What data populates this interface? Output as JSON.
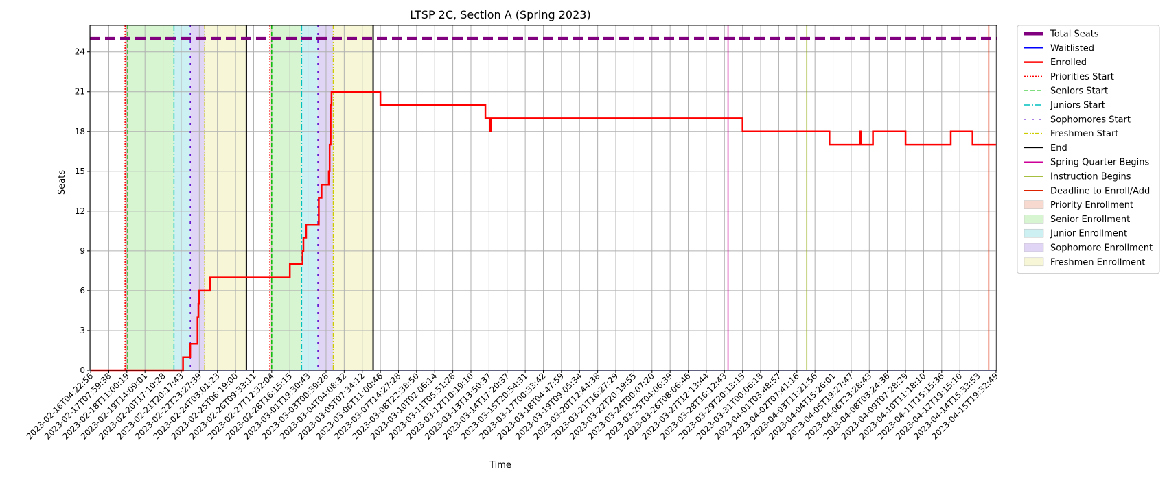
{
  "chart_data": {
    "type": "line",
    "title": "LTSP 2C, Section A (Spring 2023)",
    "xlabel": "Time",
    "ylabel": "Seats",
    "ylim": [
      0,
      26
    ],
    "yticks": [
      0,
      3,
      6,
      9,
      12,
      15,
      18,
      21,
      24
    ],
    "grid": true,
    "legend_position": "outside-right",
    "x_tick_labels": [
      "2023-02-16T04:22:56",
      "2023-02-17T07:59:38",
      "2023-02-18T11:00:19",
      "2023-02-19T14:09:01",
      "2023-02-20T17:10:28",
      "2023-02-21T20:17:43",
      "2023-02-22T23:27:39",
      "2023-02-24T03:01:23",
      "2023-02-25T06:19:00",
      "2023-02-26T09:33:11",
      "2023-02-27T12:32:04",
      "2023-02-28T16:15:15",
      "2023-03-01T19:30:43",
      "2023-03-03T00:39:28",
      "2023-03-04T04:08:32",
      "2023-03-05T07:34:12",
      "2023-03-06T11:00:46",
      "2023-03-07T14:27:28",
      "2023-03-08T22:38:50",
      "2023-03-10T02:06:14",
      "2023-03-11T05:51:28",
      "2023-03-12T10:19:10",
      "2023-03-13T13:50:37",
      "2023-03-14T17:20:37",
      "2023-03-15T20:54:31",
      "2023-03-17T00:33:42",
      "2023-03-18T04:47:59",
      "2023-03-19T09:05:34",
      "2023-03-20T12:44:38",
      "2023-03-21T16:27:29",
      "2023-03-22T20:19:55",
      "2023-03-24T00:07:20",
      "2023-03-25T04:06:39",
      "2023-03-26T08:06:46",
      "2023-03-27T12:13:44",
      "2023-03-28T16:12:43",
      "2023-03-29T20:13:15",
      "2023-03-31T00:06:18",
      "2023-04-01T03:48:57",
      "2023-04-02T07:41:16",
      "2023-04-03T11:21:56",
      "2023-04-04T15:26:01",
      "2023-04-05T19:27:47",
      "2023-04-06T23:28:43",
      "2023-04-08T03:24:36",
      "2023-04-09T07:28:29",
      "2023-04-10T11:18:10",
      "2023-04-11T15:15:36",
      "2023-04-12T19:15:10",
      "2023-04-14T15:33:53",
      "2023-04-15T19:32:49"
    ],
    "legend": [
      {
        "label": "Total Seats",
        "kind": "line",
        "color": "#800080",
        "dash": "dashed-thick"
      },
      {
        "label": "Waitlisted",
        "kind": "line",
        "color": "#0000ff",
        "dash": "solid"
      },
      {
        "label": "Enrolled",
        "kind": "line",
        "color": "#ff0000",
        "dash": "solid-thick"
      },
      {
        "label": "Priorities Start",
        "kind": "line",
        "color": "#ff0000",
        "dash": "dotted"
      },
      {
        "label": "Seniors Start",
        "kind": "line",
        "color": "#00bb00",
        "dash": "dashed"
      },
      {
        "label": "Juniors Start",
        "kind": "line",
        "color": "#00bfbf",
        "dash": "dashdot"
      },
      {
        "label": "Sophomores Start",
        "kind": "line",
        "color": "#5500cc",
        "dash": "loosedash"
      },
      {
        "label": "Freshmen Start",
        "kind": "line",
        "color": "#cccc00",
        "dash": "dashdotdot"
      },
      {
        "label": "End",
        "kind": "line",
        "color": "#000000",
        "dash": "solid"
      },
      {
        "label": "Spring Quarter Begins",
        "kind": "line",
        "color": "#cc0099",
        "dash": "solid"
      },
      {
        "label": "Instruction Begins",
        "kind": "line",
        "color": "#88aa00",
        "dash": "solid"
      },
      {
        "label": "Deadline to Enroll/Add",
        "kind": "line",
        "color": "#dd2200",
        "dash": "solid"
      },
      {
        "label": "Priority Enrollment",
        "kind": "patch",
        "color": "#f7d9cf"
      },
      {
        "label": "Senior Enrollment",
        "kind": "patch",
        "color": "#d8f5d2"
      },
      {
        "label": "Junior Enrollment",
        "kind": "patch",
        "color": "#cdf0f2"
      },
      {
        "label": "Sophomore Enrollment",
        "kind": "patch",
        "color": "#e0d5f5"
      },
      {
        "label": "Freshmen Enrollment",
        "kind": "patch",
        "color": "#f7f7d7"
      }
    ],
    "total_seats": 25,
    "waitlisted_value": 0,
    "enrolled_series": [
      [
        0,
        0
      ],
      [
        5.1,
        0
      ],
      [
        5.1,
        1
      ],
      [
        5.5,
        1
      ],
      [
        5.5,
        2
      ],
      [
        5.9,
        2
      ],
      [
        5.9,
        4
      ],
      [
        5.95,
        4
      ],
      [
        5.95,
        5
      ],
      [
        6.0,
        5
      ],
      [
        6.0,
        6
      ],
      [
        6.6,
        6
      ],
      [
        6.6,
        7
      ],
      [
        11.0,
        7
      ],
      [
        11.0,
        8
      ],
      [
        11.7,
        8
      ],
      [
        11.7,
        9
      ],
      [
        11.75,
        9
      ],
      [
        11.75,
        10
      ],
      [
        11.9,
        10
      ],
      [
        11.9,
        11
      ],
      [
        12.6,
        11
      ],
      [
        12.6,
        13
      ],
      [
        12.75,
        13
      ],
      [
        12.75,
        14
      ],
      [
        13.15,
        14
      ],
      [
        13.15,
        15
      ],
      [
        13.2,
        15
      ],
      [
        13.2,
        17
      ],
      [
        13.25,
        17
      ],
      [
        13.25,
        20
      ],
      [
        13.3,
        20
      ],
      [
        13.3,
        21
      ],
      [
        16.0,
        21
      ],
      [
        16.0,
        20
      ],
      [
        21.8,
        20
      ],
      [
        21.8,
        19
      ],
      [
        22.05,
        19
      ],
      [
        22.05,
        18
      ],
      [
        22.12,
        18
      ],
      [
        22.12,
        19
      ],
      [
        36.0,
        19
      ],
      [
        36.0,
        18
      ],
      [
        40.8,
        18
      ],
      [
        40.8,
        17
      ],
      [
        42.5,
        17
      ],
      [
        42.5,
        18
      ],
      [
        42.55,
        18
      ],
      [
        42.55,
        17
      ],
      [
        43.2,
        17
      ],
      [
        43.2,
        18
      ],
      [
        45.0,
        18
      ],
      [
        45.0,
        17
      ],
      [
        47.5,
        17
      ],
      [
        47.5,
        18
      ],
      [
        48.7,
        18
      ],
      [
        48.7,
        17
      ],
      [
        50.0,
        17
      ]
    ],
    "bands": [
      {
        "kind": "Priority Enrollment",
        "from": 1.9,
        "to": 2.05
      },
      {
        "kind": "Senior Enrollment",
        "from": 2.05,
        "to": 4.6
      },
      {
        "kind": "Junior Enrollment",
        "from": 4.6,
        "to": 5.5
      },
      {
        "kind": "Sophomore Enrollment",
        "from": 5.5,
        "to": 6.3
      },
      {
        "kind": "Freshmen Enrollment",
        "from": 6.3,
        "to": 8.6
      },
      {
        "kind": "Priority Enrollment",
        "from": 9.9,
        "to": 10.0
      },
      {
        "kind": "Senior Enrollment",
        "from": 10.0,
        "to": 11.65
      },
      {
        "kind": "Junior Enrollment",
        "from": 11.65,
        "to": 12.55
      },
      {
        "kind": "Sophomore Enrollment",
        "from": 12.55,
        "to": 13.4
      },
      {
        "kind": "Freshmen Enrollment",
        "from": 13.4,
        "to": 15.6
      }
    ],
    "event_lines": [
      {
        "kind": "Priorities Start",
        "x": 1.9
      },
      {
        "kind": "Seniors Start",
        "x": 2.05
      },
      {
        "kind": "Juniors Start",
        "x": 4.6
      },
      {
        "kind": "Sophomores Start",
        "x": 5.5
      },
      {
        "kind": "Freshmen Start",
        "x": 6.3
      },
      {
        "kind": "End",
        "x": 8.6
      },
      {
        "kind": "Priorities Start",
        "x": 9.9
      },
      {
        "kind": "Seniors Start",
        "x": 10.0
      },
      {
        "kind": "Juniors Start",
        "x": 11.65
      },
      {
        "kind": "Sophomores Start",
        "x": 12.55
      },
      {
        "kind": "Freshmen Start",
        "x": 13.4
      },
      {
        "kind": "End",
        "x": 15.6
      },
      {
        "kind": "Spring Quarter Begins",
        "x": 35.2
      },
      {
        "kind": "Instruction Begins",
        "x": 39.55
      },
      {
        "kind": "Deadline to Enroll/Add",
        "x": 49.6
      }
    ]
  }
}
